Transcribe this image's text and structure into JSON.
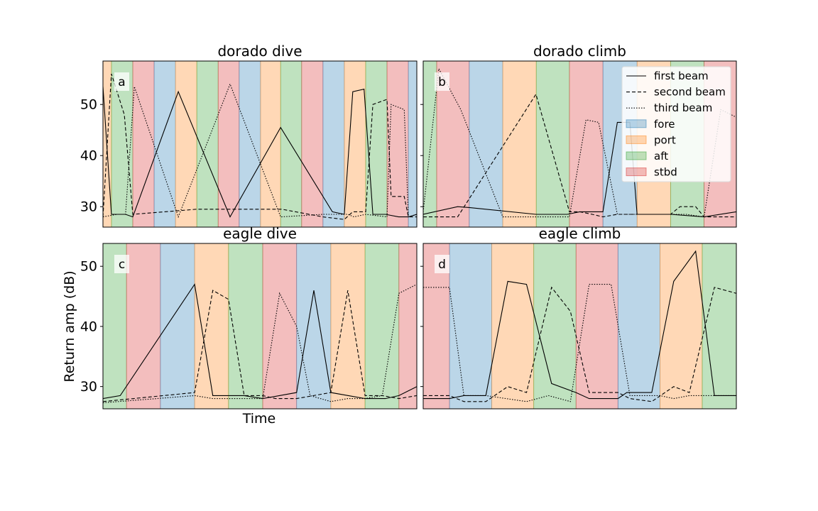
{
  "figure": {
    "ylabel": "Return amp (dB)",
    "xlabel": "Time"
  },
  "legend": {
    "placement": "upper-right of panel b",
    "entries": [
      {
        "label": "first beam",
        "kind": "line",
        "dash": "solid"
      },
      {
        "label": "second beam",
        "kind": "line",
        "dash": "dashed"
      },
      {
        "label": "third beam",
        "kind": "line",
        "dash": "dotted"
      },
      {
        "label": "fore",
        "kind": "patch",
        "color": "#1f77b4"
      },
      {
        "label": "port",
        "kind": "patch",
        "color": "#ff7f0e"
      },
      {
        "label": "aft",
        "kind": "patch",
        "color": "#2ca02c"
      },
      {
        "label": "stbd",
        "kind": "patch",
        "color": "#d62728"
      }
    ]
  },
  "colors": {
    "fore": "#1f77b4",
    "port": "#ff7f0e",
    "aft": "#2ca02c",
    "stbd": "#d62728"
  },
  "chart_data": [
    {
      "type": "line",
      "title": "dorado dive",
      "panel_letter": "a",
      "ylim": [
        26,
        58.5
      ],
      "xlim": [
        0,
        1
      ],
      "yticks": [
        30,
        40,
        50
      ],
      "show_ytick_labels": true,
      "bands": [
        {
          "x0": 0.0,
          "x1": 0.027,
          "orientation": "port"
        },
        {
          "x0": 0.027,
          "x1": 0.095,
          "orientation": "aft"
        },
        {
          "x0": 0.095,
          "x1": 0.163,
          "orientation": "stbd"
        },
        {
          "x0": 0.163,
          "x1": 0.231,
          "orientation": "fore"
        },
        {
          "x0": 0.231,
          "x1": 0.299,
          "orientation": "port"
        },
        {
          "x0": 0.299,
          "x1": 0.367,
          "orientation": "aft"
        },
        {
          "x0": 0.367,
          "x1": 0.434,
          "orientation": "stbd"
        },
        {
          "x0": 0.434,
          "x1": 0.502,
          "orientation": "fore"
        },
        {
          "x0": 0.502,
          "x1": 0.566,
          "orientation": "port"
        },
        {
          "x0": 0.566,
          "x1": 0.633,
          "orientation": "aft"
        },
        {
          "x0": 0.633,
          "x1": 0.701,
          "orientation": "stbd"
        },
        {
          "x0": 0.701,
          "x1": 0.769,
          "orientation": "fore"
        },
        {
          "x0": 0.769,
          "x1": 0.837,
          "orientation": "port"
        },
        {
          "x0": 0.837,
          "x1": 0.905,
          "orientation": "aft"
        },
        {
          "x0": 0.905,
          "x1": 0.973,
          "orientation": "stbd"
        },
        {
          "x0": 0.973,
          "x1": 1.0,
          "orientation": "fore"
        }
      ],
      "series": [
        {
          "style": "solid",
          "points": [
            [
              0.0,
              53.5
            ],
            [
              0.027,
              28.5
            ],
            [
              0.072,
              28.5
            ],
            [
              0.095,
              28.0
            ],
            [
              0.24,
              52.5
            ],
            [
              0.405,
              28.0
            ],
            [
              0.566,
              45.5
            ],
            [
              0.731,
              29.0
            ],
            [
              0.769,
              28.5
            ],
            [
              0.796,
              52.5
            ],
            [
              0.832,
              53.0
            ],
            [
              0.86,
              28.5
            ],
            [
              0.9,
              28.5
            ],
            [
              0.942,
              28.0
            ],
            [
              0.973,
              28.0
            ],
            [
              1.0,
              28.5
            ]
          ]
        },
        {
          "style": "dashed",
          "points": [
            [
              0.0,
              28.0
            ],
            [
              0.027,
              56.0
            ],
            [
              0.068,
              48.0
            ],
            [
              0.095,
              28.5
            ],
            [
              0.299,
              29.5
            ],
            [
              0.57,
              29.5
            ],
            [
              0.701,
              28.0
            ],
            [
              0.769,
              27.5
            ],
            [
              0.796,
              29.0
            ],
            [
              0.837,
              29.0
            ],
            [
              0.86,
              50.0
            ],
            [
              0.905,
              51.0
            ],
            [
              0.918,
              32.0
            ],
            [
              0.96,
              32.0
            ],
            [
              0.973,
              28.0
            ],
            [
              1.0,
              28.0
            ]
          ]
        },
        {
          "style": "dotted",
          "points": [
            [
              0.0,
              28.0
            ],
            [
              0.045,
              28.5
            ],
            [
              0.072,
              28.5
            ],
            [
              0.1,
              53.5
            ],
            [
              0.24,
              28.0
            ],
            [
              0.405,
              54.0
            ],
            [
              0.566,
              28.0
            ],
            [
              0.701,
              28.5
            ],
            [
              0.78,
              28.5
            ],
            [
              0.8,
              28.0
            ],
            [
              0.837,
              28.5
            ],
            [
              0.905,
              28.0
            ],
            [
              0.918,
              50.0
            ],
            [
              0.96,
              49.0
            ],
            [
              0.973,
              28.0
            ],
            [
              1.0,
              28.5
            ]
          ]
        }
      ]
    },
    {
      "type": "line",
      "title": "dorado climb",
      "panel_letter": "b",
      "ylim": [
        26,
        58.5
      ],
      "xlim": [
        0,
        1
      ],
      "yticks": [
        30,
        40,
        50
      ],
      "show_ytick_labels": false,
      "bands": [
        {
          "x0": 0.0,
          "x1": 0.043,
          "orientation": "aft"
        },
        {
          "x0": 0.043,
          "x1": 0.147,
          "orientation": "stbd"
        },
        {
          "x0": 0.147,
          "x1": 0.254,
          "orientation": "fore"
        },
        {
          "x0": 0.254,
          "x1": 0.361,
          "orientation": "port"
        },
        {
          "x0": 0.361,
          "x1": 0.467,
          "orientation": "aft"
        },
        {
          "x0": 0.467,
          "x1": 0.574,
          "orientation": "stbd"
        },
        {
          "x0": 0.574,
          "x1": 0.683,
          "orientation": "fore"
        },
        {
          "x0": 0.683,
          "x1": 0.79,
          "orientation": "port"
        },
        {
          "x0": 0.79,
          "x1": 0.897,
          "orientation": "aft"
        },
        {
          "x0": 0.897,
          "x1": 1.0,
          "orientation": "stbd"
        }
      ],
      "series": [
        {
          "style": "solid",
          "points": [
            [
              0.0,
              28.5
            ],
            [
              0.11,
              30.0
            ],
            [
              0.15,
              29.8
            ],
            [
              0.36,
              28.5
            ],
            [
              0.46,
              28.5
            ],
            [
              0.5,
              29.0
            ],
            [
              0.574,
              29.0
            ],
            [
              0.62,
              46.5
            ],
            [
              0.66,
              46.5
            ],
            [
              0.683,
              28.5
            ],
            [
              0.79,
              28.5
            ],
            [
              0.897,
              28.0
            ],
            [
              1.0,
              29.0
            ]
          ]
        },
        {
          "style": "dashed",
          "points": [
            [
              0.0,
              28.0
            ],
            [
              0.02,
              28.0
            ],
            [
              0.11,
              28.0
            ],
            [
              0.36,
              52.0
            ],
            [
              0.467,
              29.0
            ],
            [
              0.5,
              29.0
            ],
            [
              0.54,
              28.5
            ],
            [
              0.574,
              28.0
            ],
            [
              0.62,
              28.5
            ],
            [
              0.683,
              28.5
            ],
            [
              0.79,
              28.5
            ],
            [
              0.82,
              30.0
            ],
            [
              0.87,
              30.0
            ],
            [
              0.897,
              28.0
            ],
            [
              0.95,
              28.0
            ],
            [
              1.0,
              28.0
            ]
          ]
        },
        {
          "style": "dotted",
          "points": [
            [
              0.0,
              29.0
            ],
            [
              0.05,
              57.0
            ],
            [
              0.12,
              49.0
            ],
            [
              0.254,
              28.0
            ],
            [
              0.467,
              28.0
            ],
            [
              0.52,
              47.0
            ],
            [
              0.56,
              46.5
            ],
            [
              0.62,
              28.5
            ],
            [
              0.683,
              28.5
            ],
            [
              0.8,
              28.5
            ],
            [
              0.84,
              28.5
            ],
            [
              0.897,
              28.0
            ],
            [
              0.95,
              49.0
            ],
            [
              1.0,
              47.5
            ]
          ]
        }
      ]
    },
    {
      "type": "line",
      "title": "eagle dive",
      "panel_letter": "c",
      "ylim": [
        26.3,
        53.8
      ],
      "xlim": [
        0,
        1
      ],
      "yticks": [
        30,
        40,
        50
      ],
      "show_ytick_labels": true,
      "bands": [
        {
          "x0": 0.0,
          "x1": 0.075,
          "orientation": "aft"
        },
        {
          "x0": 0.075,
          "x1": 0.183,
          "orientation": "stbd"
        },
        {
          "x0": 0.183,
          "x1": 0.292,
          "orientation": "fore"
        },
        {
          "x0": 0.292,
          "x1": 0.4,
          "orientation": "port"
        },
        {
          "x0": 0.4,
          "x1": 0.509,
          "orientation": "aft"
        },
        {
          "x0": 0.509,
          "x1": 0.617,
          "orientation": "stbd"
        },
        {
          "x0": 0.617,
          "x1": 0.726,
          "orientation": "fore"
        },
        {
          "x0": 0.726,
          "x1": 0.835,
          "orientation": "port"
        },
        {
          "x0": 0.835,
          "x1": 0.943,
          "orientation": "aft"
        },
        {
          "x0": 0.943,
          "x1": 1.0,
          "orientation": "stbd"
        }
      ],
      "series": [
        {
          "style": "solid",
          "points": [
            [
              0.0,
              28.0
            ],
            [
              0.055,
              28.5
            ],
            [
              0.292,
              47.0
            ],
            [
              0.35,
              28.5
            ],
            [
              0.45,
              28.5
            ],
            [
              0.509,
              28.0
            ],
            [
              0.617,
              29.0
            ],
            [
              0.672,
              46.0
            ],
            [
              0.726,
              29.0
            ],
            [
              0.835,
              28.0
            ],
            [
              0.9,
              28.0
            ],
            [
              0.943,
              28.5
            ],
            [
              1.0,
              30.0
            ]
          ]
        },
        {
          "style": "dashed",
          "points": [
            [
              0.0,
              27.5
            ],
            [
              0.292,
              29.0
            ],
            [
              0.35,
              46.0
            ],
            [
              0.4,
              44.5
            ],
            [
              0.45,
              28.5
            ],
            [
              0.509,
              28.5
            ],
            [
              0.55,
              28.0
            ],
            [
              0.617,
              28.0
            ],
            [
              0.726,
              29.0
            ],
            [
              0.78,
              46.0
            ],
            [
              0.835,
              28.5
            ],
            [
              0.89,
              28.5
            ],
            [
              0.943,
              28.0
            ],
            [
              1.0,
              28.5
            ]
          ]
        },
        {
          "style": "dotted",
          "points": [
            [
              0.0,
              27.3
            ],
            [
              0.292,
              28.5
            ],
            [
              0.35,
              28.0
            ],
            [
              0.4,
              28.0
            ],
            [
              0.509,
              28.0
            ],
            [
              0.563,
              45.5
            ],
            [
              0.617,
              40.0
            ],
            [
              0.66,
              28.5
            ],
            [
              0.726,
              27.5
            ],
            [
              0.78,
              28.0
            ],
            [
              0.835,
              28.0
            ],
            [
              0.89,
              28.5
            ],
            [
              0.943,
              45.5
            ],
            [
              1.0,
              47.0
            ]
          ]
        }
      ]
    },
    {
      "type": "line",
      "title": "eagle climb",
      "panel_letter": "d",
      "ylim": [
        26.3,
        53.8
      ],
      "xlim": [
        0,
        1
      ],
      "yticks": [
        30,
        40,
        50
      ],
      "show_ytick_labels": false,
      "bands": [
        {
          "x0": 0.0,
          "x1": 0.084,
          "orientation": "stbd"
        },
        {
          "x0": 0.084,
          "x1": 0.219,
          "orientation": "fore"
        },
        {
          "x0": 0.219,
          "x1": 0.353,
          "orientation": "port"
        },
        {
          "x0": 0.353,
          "x1": 0.488,
          "orientation": "aft"
        },
        {
          "x0": 0.488,
          "x1": 0.622,
          "orientation": "stbd"
        },
        {
          "x0": 0.622,
          "x1": 0.756,
          "orientation": "fore"
        },
        {
          "x0": 0.756,
          "x1": 0.891,
          "orientation": "port"
        },
        {
          "x0": 0.891,
          "x1": 1.0,
          "orientation": "aft"
        }
      ],
      "series": [
        {
          "style": "solid",
          "points": [
            [
              0.0,
              28.0
            ],
            [
              0.084,
              28.0
            ],
            [
              0.13,
              28.5
            ],
            [
              0.2,
              28.5
            ],
            [
              0.27,
              47.5
            ],
            [
              0.33,
              47.0
            ],
            [
              0.41,
              30.5
            ],
            [
              0.488,
              29.0
            ],
            [
              0.53,
              28.0
            ],
            [
              0.622,
              28.0
            ],
            [
              0.65,
              29.0
            ],
            [
              0.73,
              29.0
            ],
            [
              0.8,
              47.5
            ],
            [
              0.87,
              52.5
            ],
            [
              0.93,
              28.5
            ],
            [
              1.0,
              28.5
            ]
          ]
        },
        {
          "style": "dashed",
          "points": [
            [
              0.0,
              28.5
            ],
            [
              0.084,
              28.5
            ],
            [
              0.13,
              27.5
            ],
            [
              0.2,
              27.5
            ],
            [
              0.27,
              30.0
            ],
            [
              0.33,
              29.0
            ],
            [
              0.41,
              46.5
            ],
            [
              0.47,
              42.5
            ],
            [
              0.53,
              29.0
            ],
            [
              0.622,
              29.0
            ],
            [
              0.66,
              28.0
            ],
            [
              0.73,
              27.5
            ],
            [
              0.8,
              30.0
            ],
            [
              0.85,
              29.0
            ],
            [
              0.93,
              46.5
            ],
            [
              1.0,
              45.5
            ]
          ]
        },
        {
          "style": "dotted",
          "points": [
            [
              0.0,
              46.5
            ],
            [
              0.084,
              46.5
            ],
            [
              0.13,
              28.5
            ],
            [
              0.2,
              28.5
            ],
            [
              0.33,
              27.5
            ],
            [
              0.4,
              28.5
            ],
            [
              0.47,
              27.5
            ],
            [
              0.53,
              47.0
            ],
            [
              0.6,
              47.0
            ],
            [
              0.66,
              28.5
            ],
            [
              0.756,
              28.5
            ],
            [
              0.8,
              28.0
            ],
            [
              0.85,
              28.5
            ],
            [
              1.0,
              28.5
            ]
          ]
        }
      ]
    }
  ]
}
